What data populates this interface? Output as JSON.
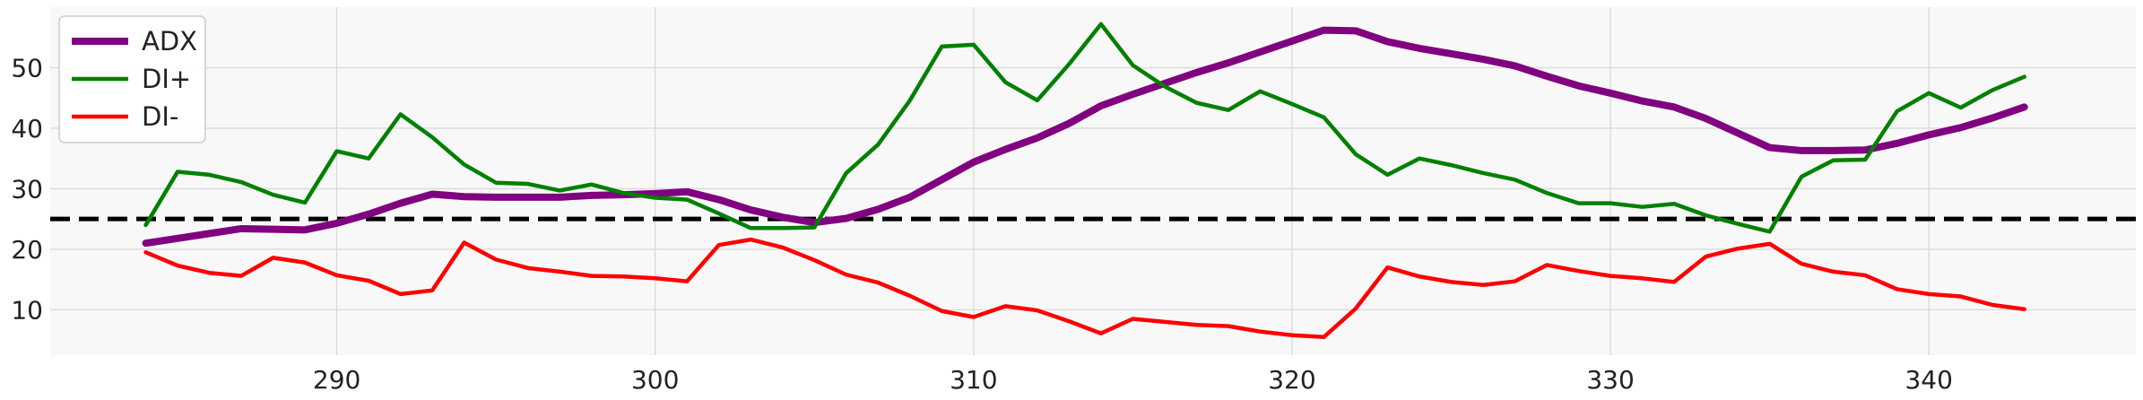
{
  "chart_data": {
    "type": "line",
    "title": "",
    "xlabel": "",
    "ylabel": "",
    "xlim": [
      281,
      346.5
    ],
    "ylim": [
      2.5,
      60
    ],
    "xticks": [
      290,
      300,
      310,
      320,
      330,
      340
    ],
    "yticks": [
      10,
      20,
      30,
      40,
      50
    ],
    "grid": true,
    "legend_position": "top-left",
    "x": [
      284,
      285,
      286,
      287,
      288,
      289,
      290,
      291,
      292,
      293,
      294,
      295,
      296,
      297,
      298,
      299,
      300,
      301,
      302,
      303,
      304,
      305,
      306,
      307,
      308,
      309,
      310,
      311,
      312,
      313,
      314,
      315,
      316,
      317,
      318,
      319,
      320,
      321,
      322,
      323,
      324,
      325,
      326,
      327,
      328,
      329,
      330,
      331,
      332,
      333,
      334,
      335,
      336,
      337,
      338,
      339,
      340,
      341,
      342,
      343
    ],
    "series": [
      {
        "name": "ADX",
        "color": "#800080",
        "values": [
          21,
          21.8,
          22.6,
          23.4,
          23.3,
          23.2,
          24.3,
          25.8,
          27.6,
          29.1,
          28.7,
          28.6,
          28.6,
          28.6,
          28.9,
          29,
          29.2,
          29.5,
          28.2,
          26.5,
          25.3,
          24.4,
          25.1,
          26.6,
          28.6,
          31.5,
          34.4,
          36.5,
          38.4,
          40.8,
          43.7,
          45.6,
          47.4,
          49.2,
          50.8,
          52.6,
          54.4,
          56.2,
          56.1,
          54.3,
          53.2,
          52.3,
          51.4,
          50.3,
          48.6,
          47,
          45.8,
          44.5,
          43.5,
          41.6,
          39.2,
          36.8,
          36.3,
          36.3,
          36.4,
          37.5,
          38.9,
          40.1,
          41.7,
          43.5
        ]
      },
      {
        "name": "DI+",
        "color": "#008000",
        "values": [
          24,
          32.8,
          32.3,
          31.1,
          29,
          27.7,
          36.2,
          35,
          42.3,
          38.5,
          34,
          31,
          30.8,
          29.7,
          30.7,
          29.3,
          28.5,
          28.2,
          25.9,
          23.5,
          23.5,
          23.6,
          32.6,
          37.3,
          44.6,
          53.5,
          53.8,
          47.6,
          44.6,
          50.6,
          57.2,
          50.4,
          46.9,
          44.2,
          43,
          46.1,
          44,
          41.8,
          35.7,
          32.3,
          35,
          33.9,
          32.6,
          31.5,
          29.3,
          27.6,
          27.6,
          27,
          27.5,
          25.6,
          24.2,
          22.9,
          32,
          34.7,
          34.8,
          42.8,
          45.8,
          43.4,
          46.3,
          48.5
        ]
      },
      {
        "name": "DI-",
        "color": "#ff0000",
        "values": [
          19.5,
          17.3,
          16.1,
          15.6,
          18.6,
          17.8,
          15.7,
          14.8,
          12.6,
          13.2,
          21.1,
          18.3,
          16.9,
          16.3,
          15.6,
          15.5,
          15.2,
          14.7,
          20.7,
          21.6,
          20.3,
          18.2,
          15.8,
          14.5,
          12.3,
          9.8,
          8.8,
          10.6,
          9.9,
          8.1,
          6.1,
          8.5,
          8,
          7.5,
          7.3,
          6.4,
          5.8,
          5.5,
          10.2,
          17,
          15.5,
          14.6,
          14.1,
          14.7,
          17.4,
          16.4,
          15.6,
          15.2,
          14.6,
          18.8,
          20.1,
          20.9,
          17.6,
          16.3,
          15.7,
          13.4,
          12.6,
          12.2,
          10.8,
          10.1
        ]
      }
    ],
    "reference_lines": [
      {
        "y": 25,
        "style": "dashed",
        "color": "#000000"
      }
    ]
  }
}
